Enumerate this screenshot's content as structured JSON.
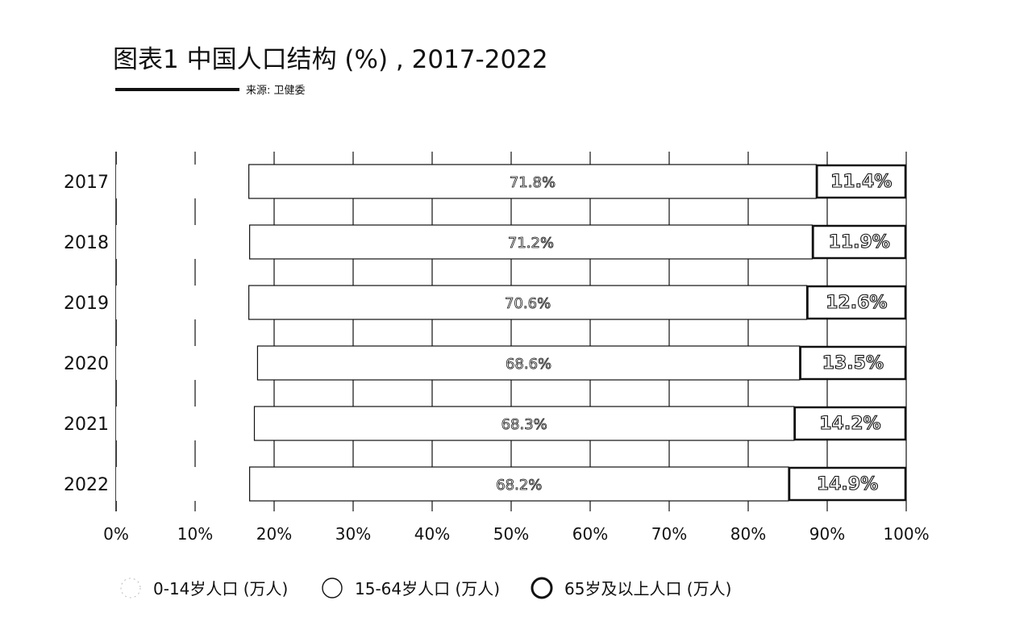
{
  "header": {
    "title": "图表1 中国人口结构 (%) , 2017-2022",
    "source": "来源: 卫健委"
  },
  "colors": {
    "ink": "#111111",
    "background": "#ffffff"
  },
  "chart_data": {
    "type": "bar",
    "orientation": "horizontal",
    "stacked": true,
    "normalized": true,
    "categories": [
      "2017",
      "2018",
      "2019",
      "2020",
      "2021",
      "2022"
    ],
    "xlim": [
      0,
      100
    ],
    "x_ticks": [
      "0%",
      "10%",
      "20%",
      "30%",
      "40%",
      "50%",
      "60%",
      "70%",
      "80%",
      "90%",
      "100%"
    ],
    "grid": true,
    "legend_position": "bottom-left",
    "series": [
      {
        "name": "0-14岁人口 (万人)",
        "values": [
          16.8,
          16.9,
          16.8,
          17.9,
          17.5,
          16.9
        ],
        "labels": [
          "",
          "",
          "",
          "",
          "",
          ""
        ]
      },
      {
        "name": "15-64岁人口 (万人)",
        "values": [
          71.8,
          71.2,
          70.6,
          68.6,
          68.3,
          68.2
        ],
        "labels": [
          "71.8%",
          "71.2%",
          "70.6%",
          "68.6%",
          "68.3%",
          "68.2%"
        ]
      },
      {
        "name": "65岁及以上人口 (万人)",
        "values": [
          11.4,
          11.9,
          12.6,
          13.5,
          14.2,
          14.9
        ],
        "labels": [
          "11.4%",
          "11.9%",
          "12.6%",
          "13.5%",
          "14.2%",
          "14.9%"
        ]
      }
    ]
  }
}
